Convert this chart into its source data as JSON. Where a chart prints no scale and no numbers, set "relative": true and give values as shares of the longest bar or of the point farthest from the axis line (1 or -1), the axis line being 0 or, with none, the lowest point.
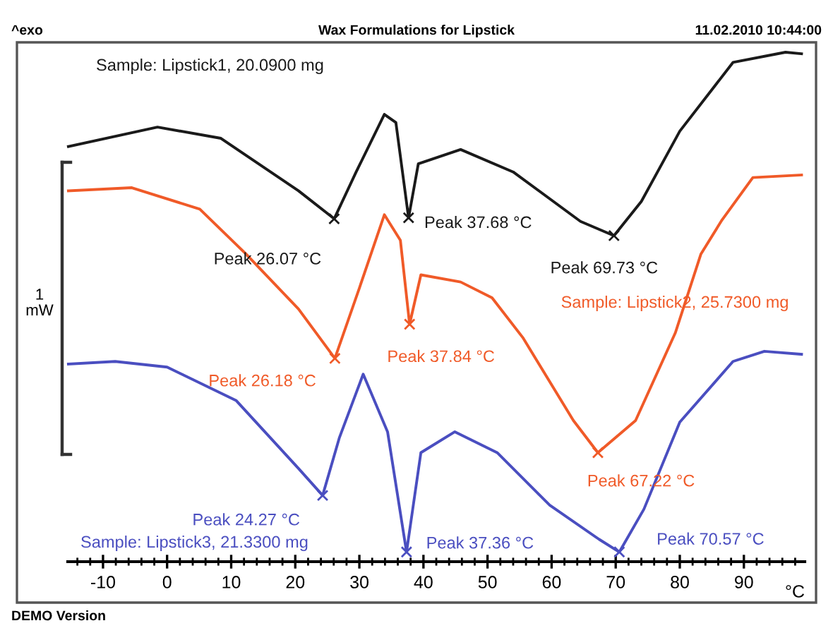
{
  "chart_data": {
    "type": "line",
    "title": "Wax Formulations for Lipstick",
    "xlabel": "°C",
    "relative": true,
    "xlim": [
      -15.5,
      99.5
    ],
    "xticks": [
      -10,
      0,
      10,
      20,
      30,
      40,
      50,
      60,
      70,
      80,
      90,
      {
        "value": -14,
        "label": null
      },
      {
        "value": -12,
        "label": null
      },
      {
        "value": -8,
        "label": null
      },
      {
        "value": -6,
        "label": null
      },
      {
        "value": -4,
        "label": null
      },
      {
        "value": -2,
        "label": null
      },
      {
        "value": 2,
        "label": null
      },
      {
        "value": 4,
        "label": null
      },
      {
        "value": 6,
        "label": null
      },
      {
        "value": 8,
        "label": null
      },
      {
        "value": 12,
        "label": null
      },
      {
        "value": 14,
        "label": null
      },
      {
        "value": 16,
        "label": null
      },
      {
        "value": 18,
        "label": null
      },
      {
        "value": 22,
        "label": null
      },
      {
        "value": 24,
        "label": null
      },
      {
        "value": 26,
        "label": null
      },
      {
        "value": 28,
        "label": null
      },
      {
        "value": 32,
        "label": null
      },
      {
        "value": 34,
        "label": null
      },
      {
        "value": 36,
        "label": null
      },
      {
        "value": 38,
        "label": null
      },
      {
        "value": 42,
        "label": null
      },
      {
        "value": 44,
        "label": null
      },
      {
        "value": 46,
        "label": null
      },
      {
        "value": 48,
        "label": null
      },
      {
        "value": 52,
        "label": null
      },
      {
        "value": 54,
        "label": null
      },
      {
        "value": 56,
        "label": null
      },
      {
        "value": 58,
        "label": null
      },
      {
        "value": 62,
        "label": null
      },
      {
        "value": 64,
        "label": null
      },
      {
        "value": 66,
        "label": null
      },
      {
        "value": 68,
        "label": null
      },
      {
        "value": 72,
        "label": null
      },
      {
        "value": 74,
        "label": null
      },
      {
        "value": 76,
        "label": null
      },
      {
        "value": 78,
        "label": null
      },
      {
        "value": 82,
        "label": null
      },
      {
        "value": 84,
        "label": null
      },
      {
        "value": 86,
        "label": null
      },
      {
        "value": 88,
        "label": null
      },
      {
        "value": 92,
        "label": null
      },
      {
        "value": 94,
        "label": null
      },
      {
        "value": 96,
        "label": null
      },
      {
        "value": 98,
        "label": null
      }
    ],
    "series": [
      {
        "name": "Sample: Lipstick1, 20.0900 mg",
        "color": "#1a1a1a",
        "x": [
          -15.4,
          -1.5,
          8.4,
          20.5,
          26.07,
          29.5,
          33.9,
          35.7,
          37.68,
          39.2,
          45.8,
          54.0,
          64.5,
          69.73,
          74.0,
          80.0,
          88.3,
          96.5,
          99.0
        ],
        "values": [
          0.815,
          0.853,
          0.831,
          0.728,
          0.673,
          0.765,
          0.878,
          0.862,
          0.675,
          0.781,
          0.809,
          0.765,
          0.668,
          0.64,
          0.707,
          0.845,
          0.98,
          1.0,
          0.997
        ]
      },
      {
        "name": "Sample: Lipstick2, 25.7300 mg",
        "color": "#f05a28",
        "x": [
          -15.4,
          -5.5,
          5.1,
          12.3,
          20.5,
          26.18,
          30.0,
          33.9,
          36.4,
          37.84,
          39.6,
          45.8,
          50.7,
          55.5,
          63.4,
          67.22,
          73.1,
          79.3,
          83.3,
          86.6,
          91.4,
          99.0
        ],
        "values": [
          0.728,
          0.734,
          0.692,
          0.604,
          0.496,
          0.399,
          0.537,
          0.681,
          0.631,
          0.466,
          0.563,
          0.549,
          0.518,
          0.44,
          0.277,
          0.214,
          0.277,
          0.449,
          0.604,
          0.671,
          0.754,
          0.759
        ]
      },
      {
        "name": "Sample: Lipstick3, 21.3300 mg",
        "color": "#4a4ec0",
        "x": [
          -15.4,
          -8.1,
          0.0,
          10.8,
          20.5,
          24.27,
          26.9,
          30.6,
          34.4,
          37.36,
          39.6,
          44.9,
          51.5,
          59.7,
          67.4,
          70.57,
          74.4,
          80.0,
          88.3,
          93.2,
          99.0
        ],
        "values": [
          0.388,
          0.393,
          0.382,
          0.316,
          0.183,
          0.13,
          0.244,
          0.368,
          0.255,
          0.019,
          0.214,
          0.255,
          0.214,
          0.111,
          0.044,
          0.019,
          0.103,
          0.274,
          0.393,
          0.413,
          0.407
        ]
      }
    ],
    "annotations": [
      "^exo",
      "11.02.2010 10:44:00",
      "1\nmW",
      "DEMO Version",
      {
        "text": "Peak 26.07 °C",
        "x": 26.07,
        "y": 0.673
      },
      {
        "text": "Peak 37.68 °C",
        "x": 37.68,
        "y": 0.675
      },
      {
        "text": "Peak 69.73 °C",
        "x": 69.73,
        "y": 0.64
      },
      {
        "text": "Peak 26.18 °C",
        "x": 26.18,
        "y": 0.399
      },
      {
        "text": "Peak 37.84 °C",
        "x": 37.84,
        "y": 0.466
      },
      {
        "text": "Peak 67.22 °C",
        "x": 67.22,
        "y": 0.214
      },
      {
        "text": "Peak 24.27 °C",
        "x": 24.27,
        "y": 0.13
      },
      {
        "text": "Peak 37.36 °C",
        "x": 37.36,
        "y": 0.019
      },
      {
        "text": "Peak 70.57 °C",
        "x": 70.57,
        "y": 0.019
      }
    ]
  }
}
